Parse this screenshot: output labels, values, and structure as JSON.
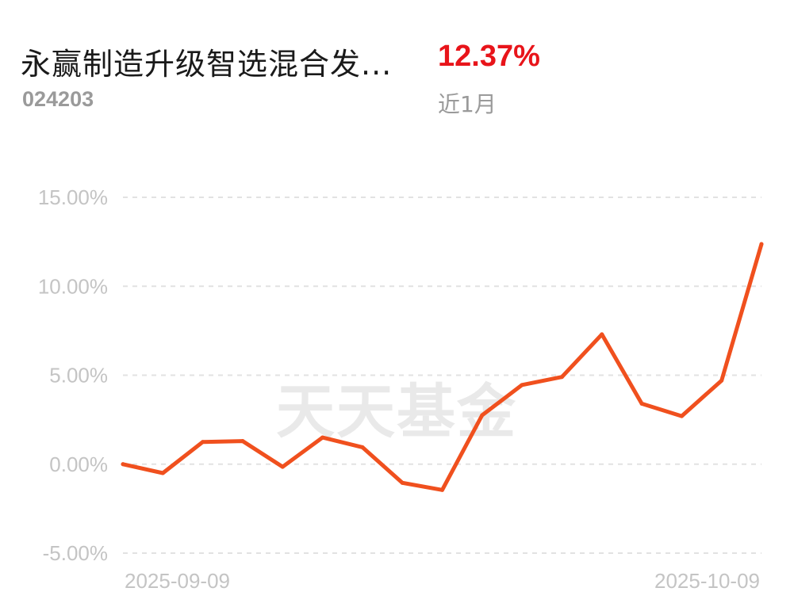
{
  "header": {
    "fund_name": "永赢制造升级智选混合发...",
    "fund_code": "024203",
    "return_value": "12.37%",
    "period_label": "近1月"
  },
  "watermark": "天天基金",
  "colors": {
    "line": "#f0501e",
    "return_positive": "#e8141a",
    "grid": "#e2e2e2",
    "tick_text": "#c4c4c4"
  },
  "chart_data": {
    "type": "line",
    "title": "",
    "xlabel": "",
    "ylabel": "",
    "ylim": [
      -5,
      15
    ],
    "y_ticks": [
      15,
      10,
      5,
      0,
      -5
    ],
    "y_tick_labels": [
      "15.00%",
      "10.00%",
      "5.00%",
      "0.00%",
      "-5.00%"
    ],
    "x_tick_labels": [
      "2025-09-09",
      "2025-10-09"
    ],
    "grid": true,
    "series": [
      {
        "values": [
          0.0,
          -0.5,
          1.25,
          1.3,
          -0.15,
          1.5,
          0.95,
          -1.05,
          -1.45,
          2.75,
          4.45,
          4.9,
          7.3,
          3.4,
          2.7,
          4.7,
          12.37
        ]
      }
    ]
  }
}
